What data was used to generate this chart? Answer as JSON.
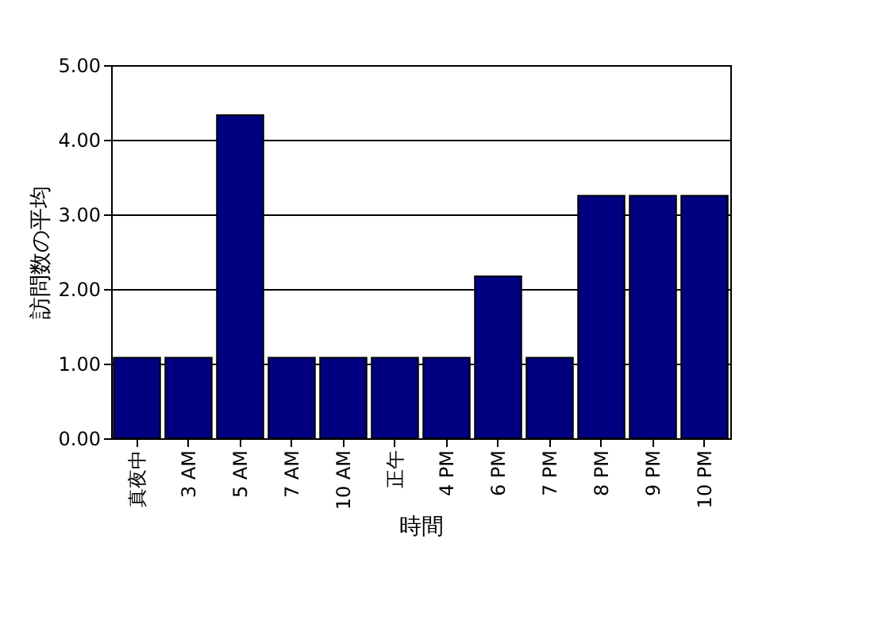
{
  "chart_data": {
    "type": "bar",
    "xlabel": "時間",
    "ylabel": "訪問数の平均",
    "categories": [
      "真夜中",
      "3 AM",
      "5 AM",
      "7 AM",
      "10 AM",
      "正午",
      "4 PM",
      "6 PM",
      "7 PM",
      "8 PM",
      "9 PM",
      "10 PM"
    ],
    "values": [
      1.08,
      1.08,
      4.33,
      1.08,
      1.08,
      1.08,
      1.08,
      2.17,
      1.08,
      3.25,
      3.25,
      3.25
    ],
    "color": "#000080",
    "ylim": [
      0,
      5
    ],
    "yticks": [
      {
        "value": 0,
        "label": "0.00"
      },
      {
        "value": 1,
        "label": "1.00"
      },
      {
        "value": 2,
        "label": "2.00"
      },
      {
        "value": 3,
        "label": "3.00"
      },
      {
        "value": 4,
        "label": "4.00"
      },
      {
        "value": 5,
        "label": "5.00"
      }
    ],
    "grid": "y"
  }
}
